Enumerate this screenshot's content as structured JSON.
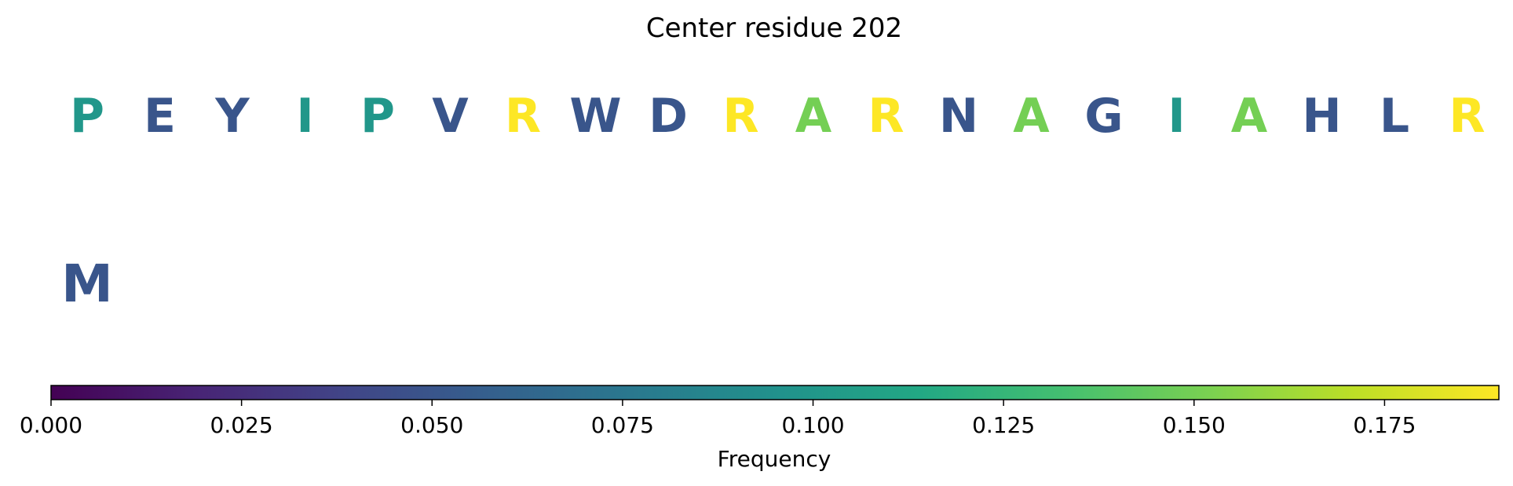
{
  "chart_data": {
    "type": "heatmap",
    "title": "Center residue 202",
    "sequence_row": [
      {
        "residue": "P",
        "value": 0.1
      },
      {
        "residue": "E",
        "value": 0.05
      },
      {
        "residue": "Y",
        "value": 0.05
      },
      {
        "residue": "I",
        "value": 0.1
      },
      {
        "residue": "P",
        "value": 0.1
      },
      {
        "residue": "V",
        "value": 0.05
      },
      {
        "residue": "R",
        "value": 0.19
      },
      {
        "residue": "W",
        "value": 0.05
      },
      {
        "residue": "D",
        "value": 0.05
      },
      {
        "residue": "R",
        "value": 0.19
      },
      {
        "residue": "A",
        "value": 0.15
      },
      {
        "residue": "R",
        "value": 0.19
      },
      {
        "residue": "N",
        "value": 0.05
      },
      {
        "residue": "A",
        "value": 0.15
      },
      {
        "residue": "G",
        "value": 0.05
      },
      {
        "residue": "I",
        "value": 0.1
      },
      {
        "residue": "A",
        "value": 0.15
      },
      {
        "residue": "H",
        "value": 0.05
      },
      {
        "residue": "L",
        "value": 0.05
      },
      {
        "residue": "R",
        "value": 0.19
      }
    ],
    "center_residue": {
      "residue": "M",
      "value": 0.05
    },
    "colorbar": {
      "label": "Frequency",
      "range": [
        0,
        0.19
      ],
      "colormap": "viridis",
      "ticks": [
        0.0,
        0.025,
        0.05,
        0.075,
        0.1,
        0.125,
        0.15,
        0.175
      ],
      "tick_labels": [
        "0.000",
        "0.025",
        "0.050",
        "0.075",
        "0.100",
        "0.125",
        "0.150",
        "0.175"
      ],
      "orientation": "horizontal"
    }
  }
}
